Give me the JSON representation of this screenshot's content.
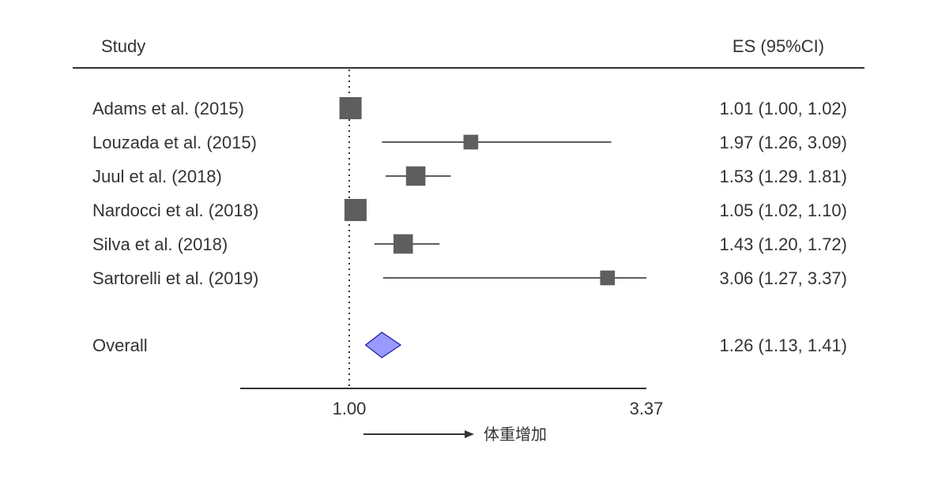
{
  "chart_data": {
    "type": "forest",
    "header": {
      "study_label": "Study",
      "es_label": "ES (95%CI)"
    },
    "null_value": 1.0,
    "x_range": [
      1.0,
      3.37
    ],
    "x_tick_labels": [
      "1.00",
      "3.37"
    ],
    "x_direction_label": "体重增加",
    "studies": [
      {
        "name": "Adams et al. (2015)",
        "es": 1.01,
        "lo": 1.0,
        "hi": 1.02,
        "label": "1.01 (1.00, 1.02)",
        "weight": 1.0
      },
      {
        "name": "Louzada et al. (2015)",
        "es": 1.97,
        "lo": 1.26,
        "hi": 3.09,
        "label": "1.97 (1.26, 3.09)",
        "weight": 0.45
      },
      {
        "name": "Juul et al. (2018)",
        "es": 1.53,
        "lo": 1.29,
        "hi": 1.81,
        "label": "1.53 (1.29. 1.81)",
        "weight": 0.8
      },
      {
        "name": "Nardocci et al. (2018)",
        "es": 1.05,
        "lo": 1.02,
        "hi": 1.1,
        "label": "1.05 (1.02, 1.10)",
        "weight": 1.0
      },
      {
        "name": "Silva et al. (2018)",
        "es": 1.43,
        "lo": 1.2,
        "hi": 1.72,
        "label": "1.43 (1.20, 1.72)",
        "weight": 0.8
      },
      {
        "name": "Sartorelli et al. (2019)",
        "es": 3.06,
        "lo": 1.27,
        "hi": 3.37,
        "label": "3.06 (1.27, 3.37)",
        "weight": 0.45
      }
    ],
    "overall": {
      "name": "Overall",
      "es": 1.26,
      "lo": 1.13,
      "hi": 1.41,
      "label": "1.26 (1.13, 1.41)"
    },
    "colors": {
      "marker": "#5e5e5e",
      "line": "#5e5e5e",
      "diamond_fill": "#9999ff",
      "diamond_stroke": "#1a1aa8",
      "text": "#333333"
    }
  }
}
